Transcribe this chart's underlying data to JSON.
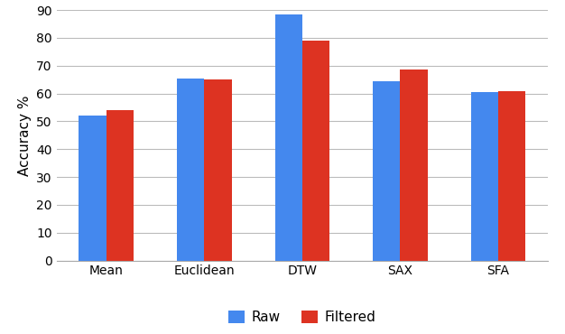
{
  "categories": [
    "Mean",
    "Euclidean",
    "DTW",
    "SAX",
    "SFA"
  ],
  "raw_values": [
    52,
    65.5,
    88.5,
    64.5,
    60.5
  ],
  "filtered_values": [
    54,
    65,
    79,
    68.5,
    61
  ],
  "raw_color": "#4488EE",
  "filtered_color": "#DD3322",
  "ylabel": "Accuracy %",
  "ylim": [
    0,
    90
  ],
  "yticks": [
    0,
    10,
    20,
    30,
    40,
    50,
    60,
    70,
    80,
    90
  ],
  "legend_labels": [
    "Raw",
    "Filtered"
  ],
  "bar_width": 0.28,
  "background_color": "#FFFFFF",
  "grid_color": "#BBBBBB",
  "axis_fontsize": 11,
  "tick_fontsize": 10
}
